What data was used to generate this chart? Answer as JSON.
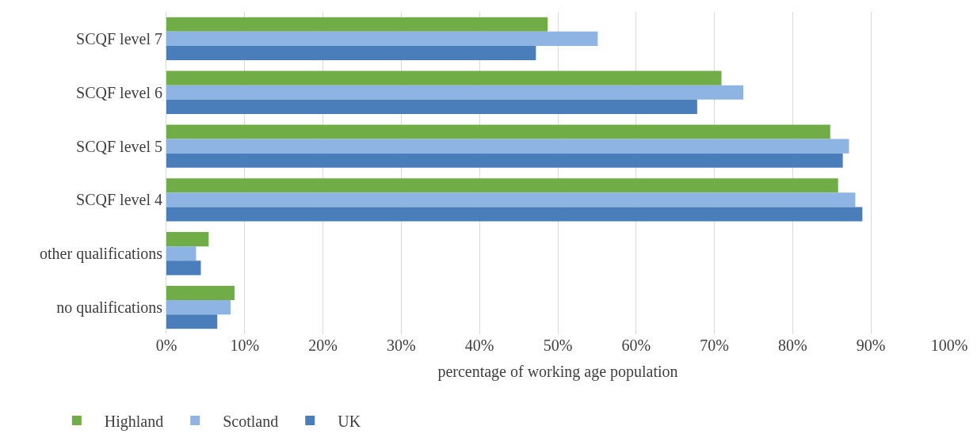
{
  "chart_data": {
    "type": "bar",
    "orientation": "horizontal",
    "xlabel": "percentage of working age population",
    "categories": [
      "SCQF level 7",
      "SCQF level 6",
      "SCQF level 5",
      "SCQF level 4",
      "other qualifications",
      "no qualifications"
    ],
    "series": [
      {
        "name": "Highland",
        "color": "#70ad47",
        "values": [
          48.7,
          70.9,
          84.8,
          85.8,
          5.4,
          8.7
        ]
      },
      {
        "name": "Scotland",
        "color": "#8eb4e3",
        "values": [
          55.1,
          73.7,
          87.2,
          88.0,
          3.8,
          8.2
        ]
      },
      {
        "name": "UK",
        "color": "#4a7ebb",
        "values": [
          47.2,
          67.8,
          86.4,
          88.9,
          4.4,
          6.5
        ]
      }
    ],
    "xlim": [
      0,
      100
    ],
    "xticks": [
      {
        "value": 0,
        "label": "0%"
      },
      {
        "value": 10,
        "label": "10%"
      },
      {
        "value": 20,
        "label": "20%"
      },
      {
        "value": 30,
        "label": "30%"
      },
      {
        "value": 40,
        "label": "40%"
      },
      {
        "value": 50,
        "label": "50%"
      },
      {
        "value": 60,
        "label": "60%"
      },
      {
        "value": 70,
        "label": "70%"
      },
      {
        "value": 80,
        "label": "80%"
      },
      {
        "value": 90,
        "label": "90%"
      },
      {
        "value": 100,
        "label": "100%"
      }
    ],
    "grid": "x",
    "legend": "bottom left"
  }
}
